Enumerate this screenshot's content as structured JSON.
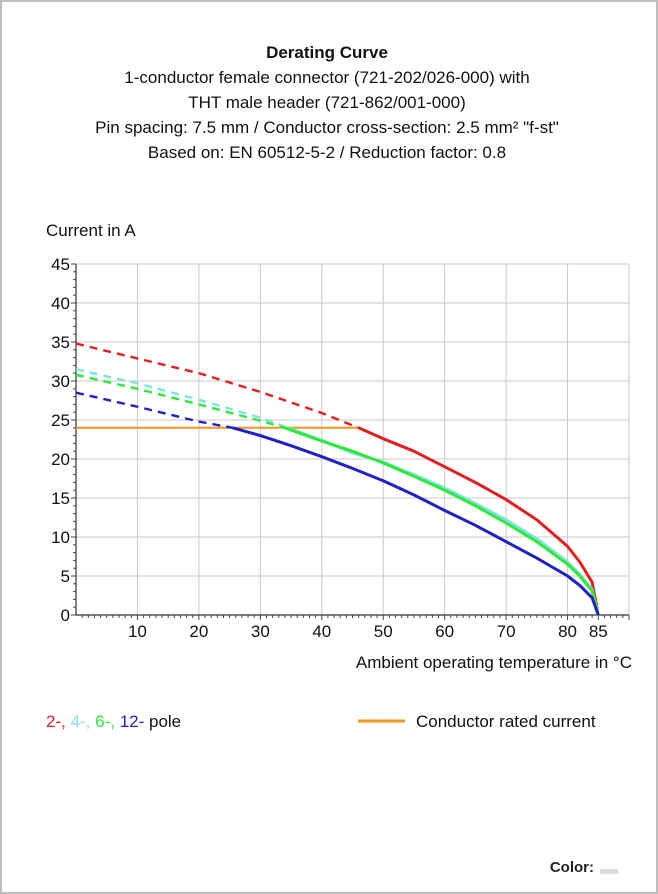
{
  "chart_data": {
    "type": "line",
    "title": "Derating Curve",
    "subtitle_lines": [
      "1-conductor female connector (721-202/026-000) with",
      "THT male header (721-862/001-000)",
      "Pin spacing: 7.5 mm / Conductor cross-section: 2.5 mm² \"f-st\"",
      "Based on: EN 60512-5-2 / Reduction factor: 0.8"
    ],
    "xlabel": "Ambient operating temperature in °C",
    "ylabel": "Current in A",
    "xlim": [
      0,
      90
    ],
    "ylim": [
      0,
      45
    ],
    "x_ticks": [
      10,
      20,
      30,
      40,
      50,
      60,
      70,
      80,
      85
    ],
    "y_ticks": [
      0,
      5,
      10,
      15,
      20,
      25,
      30,
      35,
      40,
      45
    ],
    "grid": true,
    "series": [
      {
        "name": "2-",
        "color": "#e41e1e",
        "dashed": {
          "x": [
            0,
            10,
            20,
            30,
            40,
            46
          ],
          "y": [
            34.8,
            32.9,
            31.0,
            28.6,
            25.9,
            24.0
          ]
        },
        "solid": {
          "x": [
            46,
            50,
            55,
            60,
            65,
            70,
            75,
            80,
            82,
            84,
            85
          ],
          "y": [
            24.0,
            22.6,
            21.0,
            19.0,
            17.0,
            14.8,
            12.2,
            8.8,
            6.8,
            4.2,
            0
          ]
        }
      },
      {
        "name": "4-",
        "color": "#7fe3e0",
        "dashed": {
          "x": [
            0,
            10,
            20,
            30,
            34.5
          ],
          "y": [
            31.5,
            29.7,
            27.6,
            25.3,
            24.0
          ]
        },
        "solid": {
          "x": [
            34.5,
            40,
            45,
            50,
            55,
            60,
            65,
            70,
            75,
            80,
            82,
            84,
            85
          ],
          "y": [
            24.0,
            22.4,
            20.8,
            19.6,
            18.0,
            16.3,
            14.3,
            12.2,
            9.8,
            6.8,
            5.2,
            3.3,
            0
          ]
        }
      },
      {
        "name": "6-",
        "color": "#2ee83a",
        "dashed": {
          "x": [
            0,
            10,
            20,
            30,
            34
          ],
          "y": [
            30.8,
            29.0,
            27.0,
            24.9,
            24.0
          ]
        },
        "solid": {
          "x": [
            34,
            40,
            45,
            50,
            55,
            60,
            65,
            70,
            75,
            80,
            82,
            84,
            85
          ],
          "y": [
            24.0,
            22.3,
            21.0,
            19.5,
            17.8,
            16.0,
            14.0,
            11.8,
            9.4,
            6.5,
            5.0,
            3.1,
            0
          ]
        }
      },
      {
        "name": "12-",
        "color": "#1f21c8",
        "dashed": {
          "x": [
            0,
            10,
            20,
            25.5
          ],
          "y": [
            28.5,
            26.7,
            24.8,
            24.0
          ]
        },
        "solid": {
          "x": [
            25.5,
            30,
            35,
            40,
            45,
            50,
            55,
            60,
            65,
            70,
            75,
            80,
            82,
            84,
            85
          ],
          "y": [
            24.0,
            23.0,
            21.7,
            20.3,
            18.8,
            17.2,
            15.4,
            13.4,
            11.5,
            9.4,
            7.3,
            5.0,
            3.8,
            2.2,
            0
          ]
        }
      },
      {
        "name": "Conductor rated current",
        "color": "#f7931e",
        "solid": {
          "x": [
            0,
            46
          ],
          "y": [
            24,
            24
          ]
        }
      }
    ],
    "legend": {
      "pole_parts": [
        {
          "text": "2-,",
          "color": "#e41e1e"
        },
        {
          "text": "4-,",
          "color": "#7fe3e0"
        },
        {
          "text": "6-,",
          "color": "#2ee83a"
        },
        {
          "text": "12-",
          "color": "#1f21c8"
        },
        {
          "text": "pole",
          "color": "#111111"
        }
      ],
      "rated_label": "Conductor rated current",
      "rated_color": "#f7931e"
    }
  },
  "footer": {
    "color_label": "Color:",
    "swatch_color": "#d9d9d9"
  }
}
